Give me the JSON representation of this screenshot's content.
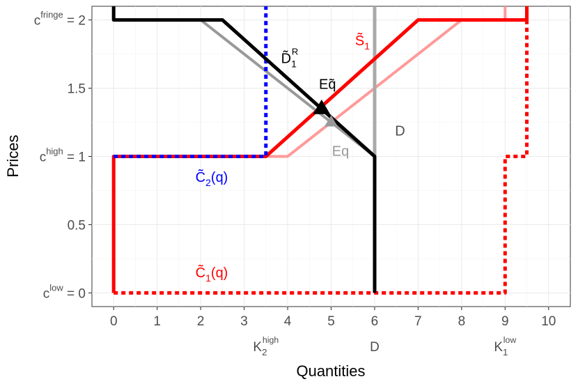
{
  "chart_data": {
    "type": "line",
    "xlabel": "Quantities",
    "ylabel": "Prices",
    "xlim": [
      -0.5,
      10.5
    ],
    "ylim": [
      -0.1,
      2.1
    ],
    "grid": true,
    "x_ticks": [
      0,
      1,
      2,
      3,
      4,
      5,
      6,
      7,
      8,
      9,
      10
    ],
    "x_tick_labels": [
      "0",
      "1",
      "2",
      "3",
      "4",
      "5",
      "6",
      "7",
      "8",
      "9",
      "10"
    ],
    "y_ticks": [
      0,
      0.5,
      1,
      1.5,
      2
    ],
    "y_tick_labels": [
      {
        "base": "c",
        "sup": "low",
        "suffix": " = 0"
      },
      {
        "base": "0.5",
        "sup": "",
        "suffix": ""
      },
      {
        "base": "c",
        "sup": "high",
        "suffix": " = 1"
      },
      {
        "base": "1.5",
        "sup": "",
        "suffix": ""
      },
      {
        "base": "c",
        "sup": "fringe",
        "suffix": " = 2"
      }
    ],
    "extra_x_labels": [
      {
        "x": 3.5,
        "base": "K",
        "sub": "2",
        "sup": "high"
      },
      {
        "x": 6,
        "base": "D",
        "sub": "",
        "sup": ""
      },
      {
        "x": 9,
        "base": "K",
        "sub": "1",
        "sup": "low"
      }
    ],
    "series": [
      {
        "key": "supply-reference",
        "color": "#ff9a9a",
        "width": 4,
        "dash": false,
        "points": [
          [
            0,
            1
          ],
          [
            4,
            1
          ],
          [
            8,
            2
          ],
          [
            9,
            2
          ],
          [
            9,
            2.1
          ]
        ]
      },
      {
        "key": "demand-reference",
        "color": "#999999",
        "width": 4,
        "dash": false,
        "points": [
          [
            2,
            2
          ],
          [
            6,
            1
          ]
        ]
      },
      {
        "key": "demand-vertical",
        "color": "#aaaaaa",
        "width": 5,
        "dash": false,
        "points": [
          [
            6,
            1
          ],
          [
            6,
            2.1
          ]
        ]
      },
      {
        "key": "supply-tilde",
        "color": "#ff0000",
        "width": 5,
        "dash": false,
        "points": [
          [
            0,
            0
          ],
          [
            0,
            1
          ],
          [
            3.5,
            1
          ],
          [
            7,
            2
          ],
          [
            9.5,
            2
          ],
          [
            9.5,
            2.1
          ]
        ]
      },
      {
        "key": "cost-2",
        "color": "#0000ff",
        "width": 5,
        "dash": true,
        "points": [
          [
            0,
            1
          ],
          [
            3.5,
            1
          ],
          [
            3.5,
            2.1
          ]
        ]
      },
      {
        "key": "cost-1",
        "color": "#ff0000",
        "width": 5,
        "dash": true,
        "points": [
          [
            0,
            0
          ],
          [
            9,
            0
          ],
          [
            9,
            1
          ],
          [
            9.5,
            1
          ],
          [
            9.5,
            2.1
          ]
        ]
      },
      {
        "key": "residual-demand",
        "color": "#000000",
        "width": 5,
        "dash": false,
        "points": [
          [
            0,
            2.1
          ],
          [
            0,
            2
          ],
          [
            2.5,
            2
          ],
          [
            6,
            1
          ],
          [
            6,
            0
          ]
        ]
      }
    ],
    "markers": [
      {
        "key": "eq-marker",
        "x": 5,
        "y": 1.25,
        "shape": "triangle",
        "color": "#999999",
        "size": 10
      },
      {
        "key": "eq-tilde-marker",
        "x": 4.78,
        "y": 1.35,
        "shape": "triangle",
        "color": "#000000",
        "size": 13
      }
    ],
    "annotations": [
      {
        "key": "label-d1r",
        "x": 3.85,
        "y": 1.72,
        "base": "D",
        "sub": "1",
        "sup": "R",
        "tilde": true,
        "color": "#000000"
      },
      {
        "key": "label-s1",
        "x": 5.55,
        "y": 1.85,
        "base": "S",
        "sub": "1",
        "sup": "",
        "tilde": true,
        "color": "#ff0000"
      },
      {
        "key": "label-eqtilde",
        "x": 4.72,
        "y": 1.53,
        "base": "Eq",
        "sub": "",
        "sup": "",
        "tilde": true,
        "color": "#000000"
      },
      {
        "key": "label-d",
        "x": 6.47,
        "y": 1.19,
        "base": "D",
        "sub": "",
        "sup": "",
        "tilde": false,
        "color": "#4d4d4d"
      },
      {
        "key": "label-eq",
        "x": 5.02,
        "y": 1.04,
        "base": "Eq",
        "sub": "",
        "sup": "",
        "tilde": false,
        "color": "#999999"
      },
      {
        "key": "label-c2",
        "x": 1.88,
        "y": 0.85,
        "base": "C",
        "sub": "2",
        "sup": "",
        "tail": "(q)",
        "tilde": true,
        "color": "#0000ff"
      },
      {
        "key": "label-c1",
        "x": 1.88,
        "y": 0.15,
        "base": "C",
        "sub": "1",
        "sup": "",
        "tail": "(q)",
        "tilde": true,
        "color": "#ff0000"
      }
    ]
  }
}
